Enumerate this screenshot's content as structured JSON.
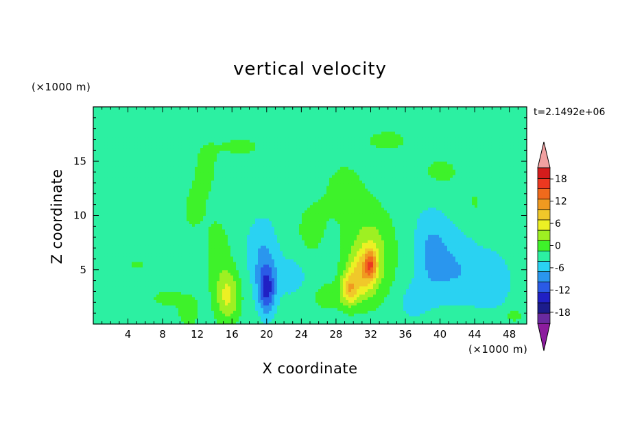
{
  "chart_data": {
    "type": "heatmap",
    "title": "vertical velocity",
    "xlabel": "X coordinate",
    "ylabel": "Z coordinate",
    "x_unit_label": "(×1000 m)",
    "y_unit_label": "(×1000 m)",
    "time_label": "t=2.1492e+06",
    "x_range": [
      0,
      50
    ],
    "y_range": [
      0,
      20
    ],
    "x_ticks": [
      4,
      8,
      12,
      16,
      20,
      24,
      28,
      32,
      36,
      40,
      44,
      48
    ],
    "y_ticks": [
      5,
      10,
      15
    ],
    "background_value": -1.5,
    "colorbar": {
      "levels": [
        -21,
        -18,
        -15,
        -12,
        -9,
        -6,
        -3,
        0,
        3,
        6,
        9,
        12,
        15,
        18,
        21
      ],
      "tick_labels": [
        "18",
        "12",
        "6",
        "0",
        "-6",
        "-12",
        "-18"
      ],
      "tick_values": [
        18,
        12,
        6,
        0,
        -6,
        -12,
        -18
      ],
      "colors": [
        "#6a2aa0",
        "#1c1c8c",
        "#2020c4",
        "#2a5ae6",
        "#2a96ee",
        "#2ad2f2",
        "#2cf0a2",
        "#3ef22a",
        "#9ef022",
        "#ecf024",
        "#f0c82a",
        "#f09a20",
        "#f06a1c",
        "#ec3820",
        "#d41c1c"
      ],
      "under_color": "#8c1c9e",
      "over_color": "#f0a0a0"
    },
    "features": [
      {
        "x": 13,
        "z": 14.5,
        "sx": 1.6,
        "sz": 2.6,
        "value": 2.0
      },
      {
        "x": 17,
        "z": 16.4,
        "sx": 3.2,
        "sz": 1.2,
        "value": 2.0
      },
      {
        "x": 11.5,
        "z": 10.5,
        "sx": 2.0,
        "sz": 3.0,
        "value": 1.8
      },
      {
        "x": 5,
        "z": 5.5,
        "sx": 3.0,
        "sz": 1.2,
        "value": 1.6
      },
      {
        "x": 8.5,
        "z": 2.4,
        "sx": 2.2,
        "sz": 0.9,
        "value": 2.3
      },
      {
        "x": 11,
        "z": 1.2,
        "sx": 1.2,
        "sz": 1.4,
        "value": 3.5
      },
      {
        "x": 15.5,
        "z": 2.6,
        "sx": 1.4,
        "sz": 2.4,
        "value": 8.0
      },
      {
        "x": 14.5,
        "z": 6.5,
        "sx": 1.5,
        "sz": 3.5,
        "value": 2.5
      },
      {
        "x": 20,
        "z": 3.2,
        "sx": 1.0,
        "sz": 2.2,
        "value": -11.0
      },
      {
        "x": 19.5,
        "z": 6.5,
        "sx": 1.8,
        "sz": 3.2,
        "value": -4.5
      },
      {
        "x": 23,
        "z": 4.5,
        "sx": 2.0,
        "sz": 2.0,
        "value": -3.0
      },
      {
        "x": 25,
        "z": 8.5,
        "sx": 2.2,
        "sz": 3.5,
        "value": 2.0
      },
      {
        "x": 29,
        "z": 12.5,
        "sx": 3.0,
        "sz": 3.5,
        "value": 2.0
      },
      {
        "x": 34,
        "z": 17.0,
        "sx": 3.5,
        "sz": 1.4,
        "value": 1.9
      },
      {
        "x": 40,
        "z": 14.0,
        "sx": 3.5,
        "sz": 2.2,
        "value": 1.9
      },
      {
        "x": 44,
        "z": 11.0,
        "sx": 1.5,
        "sz": 2.0,
        "value": 1.6
      },
      {
        "x": 32,
        "z": 6.5,
        "sx": 2.6,
        "sz": 3.8,
        "value": 6.5
      },
      {
        "x": 31,
        "z": 4.5,
        "sx": 1.6,
        "sz": 2.2,
        "value": 8.0
      },
      {
        "x": 29.5,
        "z": 3.2,
        "sx": 1.0,
        "sz": 1.5,
        "value": 9.5
      },
      {
        "x": 32,
        "z": 5.6,
        "sx": 0.7,
        "sz": 1.3,
        "value": 10.0
      },
      {
        "x": 27,
        "z": 2.5,
        "sx": 2.0,
        "sz": 1.5,
        "value": 2.5
      },
      {
        "x": 39,
        "z": 6.5,
        "sx": 2.0,
        "sz": 4.0,
        "value": -5.0
      },
      {
        "x": 42,
        "z": 5.0,
        "sx": 2.5,
        "sz": 3.5,
        "value": -4.0
      },
      {
        "x": 46,
        "z": 4.0,
        "sx": 2.5,
        "sz": 3.0,
        "value": -3.0
      },
      {
        "x": 41.5,
        "z": 0.8,
        "sx": 3.0,
        "sz": 0.6,
        "value": 2.5
      },
      {
        "x": 48.5,
        "z": 0.8,
        "sx": 1.2,
        "sz": 0.6,
        "value": 3.0
      },
      {
        "x": 37,
        "z": 2.0,
        "sx": 1.5,
        "sz": 1.5,
        "value": -3.5
      }
    ]
  }
}
